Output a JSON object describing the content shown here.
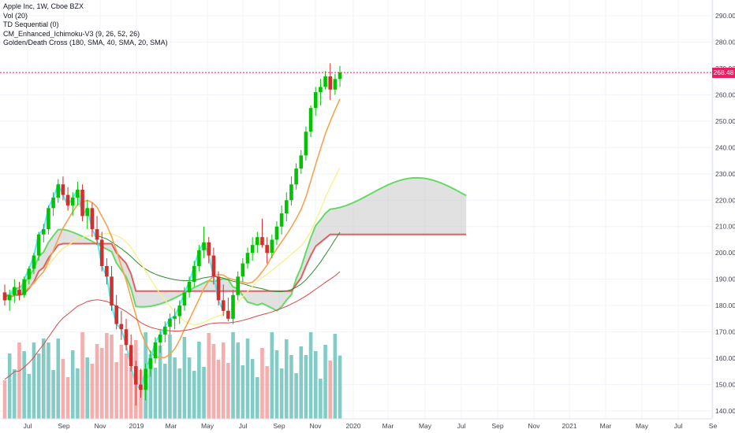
{
  "legend": {
    "title": "Apple Inc, 1W, Cboe BZX",
    "items": [
      "Vol (20)",
      "TD Sequential (0)",
      "CM_Enhanced_Ichimoku-V3 (9, 26, 52, 26)",
      "Golden/Death Cross (180, SMA, 40, SMA, 20, SMA)"
    ]
  },
  "price_label": "268.48",
  "colors": {
    "up": "#00c400",
    "down": "#d32f2f",
    "vol_up": "#76c7c0",
    "vol_down": "#f4a5a5",
    "cyan": "#4ff0f7",
    "orange": "#f7a24f",
    "yellow": "#f7f08a",
    "green_sma": "#2e8b2e",
    "red_sma": "#d84848",
    "cloud_edge_green": "#66d966",
    "cloud_edge_red": "#e06060",
    "cloud_fill": "#c8c8c8",
    "price_line": "#e91e63",
    "td_up": "#1b8a1b",
    "td_down": "#c62828"
  },
  "chart_data": {
    "type": "candlestick",
    "title": "Apple Inc, 1W, Cboe BZX",
    "y_axis_ticks": [
      "140.00",
      "150.00",
      "160.00",
      "170.00",
      "180.00",
      "190.00",
      "200.00",
      "210.00",
      "220.00",
      "230.00",
      "240.00",
      "250.00",
      "260.00",
      "270.00",
      "280.00",
      "290.00"
    ],
    "x_axis_ticks": [
      "Jul",
      "Sep",
      "Nov",
      "2019",
      "Mar",
      "May",
      "Jul",
      "Sep",
      "Nov",
      "2020",
      "Mar",
      "May",
      "Jul",
      "Sep",
      "Nov",
      "2021",
      "Mar",
      "May",
      "Jul",
      "Se"
    ],
    "ylim": [
      137,
      296
    ],
    "last_price": 268.48,
    "candles": [
      {
        "o": 185,
        "h": 188,
        "l": 180,
        "c": 182
      },
      {
        "o": 182,
        "h": 186,
        "l": 178,
        "c": 184
      },
      {
        "o": 184,
        "h": 190,
        "l": 181,
        "c": 187
      },
      {
        "o": 186,
        "h": 189,
        "l": 182,
        "c": 184
      },
      {
        "o": 184,
        "h": 191,
        "l": 183,
        "c": 190
      },
      {
        "o": 190,
        "h": 195,
        "l": 188,
        "c": 194
      },
      {
        "o": 194,
        "h": 200,
        "l": 192,
        "c": 199
      },
      {
        "o": 199,
        "h": 208,
        "l": 197,
        "c": 207
      },
      {
        "o": 207,
        "h": 211,
        "l": 204,
        "c": 209
      },
      {
        "o": 209,
        "h": 218,
        "l": 207,
        "c": 217
      },
      {
        "o": 217,
        "h": 223,
        "l": 214,
        "c": 221
      },
      {
        "o": 221,
        "h": 228,
        "l": 219,
        "c": 226
      },
      {
        "o": 226,
        "h": 229,
        "l": 220,
        "c": 222
      },
      {
        "o": 222,
        "h": 225,
        "l": 216,
        "c": 218
      },
      {
        "o": 218,
        "h": 223,
        "l": 214,
        "c": 221
      },
      {
        "o": 221,
        "h": 227,
        "l": 218,
        "c": 224
      },
      {
        "o": 224,
        "h": 226,
        "l": 212,
        "c": 214
      },
      {
        "o": 214,
        "h": 220,
        "l": 209,
        "c": 217
      },
      {
        "o": 217,
        "h": 219,
        "l": 206,
        "c": 209
      },
      {
        "o": 209,
        "h": 214,
        "l": 203,
        "c": 205
      },
      {
        "o": 205,
        "h": 208,
        "l": 193,
        "c": 195
      },
      {
        "o": 195,
        "h": 198,
        "l": 188,
        "c": 191
      },
      {
        "o": 191,
        "h": 195,
        "l": 178,
        "c": 180
      },
      {
        "o": 180,
        "h": 184,
        "l": 171,
        "c": 173
      },
      {
        "o": 173,
        "h": 178,
        "l": 167,
        "c": 171
      },
      {
        "o": 171,
        "h": 175,
        "l": 163,
        "c": 165
      },
      {
        "o": 165,
        "h": 169,
        "l": 155,
        "c": 157
      },
      {
        "o": 157,
        "h": 159,
        "l": 142,
        "c": 150
      },
      {
        "o": 150,
        "h": 156,
        "l": 145,
        "c": 148
      },
      {
        "o": 148,
        "h": 158,
        "l": 144,
        "c": 156
      },
      {
        "o": 156,
        "h": 163,
        "l": 153,
        "c": 160
      },
      {
        "o": 160,
        "h": 168,
        "l": 158,
        "c": 166
      },
      {
        "o": 166,
        "h": 171,
        "l": 162,
        "c": 169
      },
      {
        "o": 169,
        "h": 174,
        "l": 166,
        "c": 172
      },
      {
        "o": 172,
        "h": 177,
        "l": 169,
        "c": 175
      },
      {
        "o": 175,
        "h": 179,
        "l": 171,
        "c": 176
      },
      {
        "o": 176,
        "h": 182,
        "l": 173,
        "c": 180
      },
      {
        "o": 180,
        "h": 187,
        "l": 178,
        "c": 185
      },
      {
        "o": 185,
        "h": 191,
        "l": 183,
        "c": 189
      },
      {
        "o": 189,
        "h": 197,
        "l": 187,
        "c": 195
      },
      {
        "o": 195,
        "h": 203,
        "l": 193,
        "c": 201
      },
      {
        "o": 201,
        "h": 210,
        "l": 198,
        "c": 204
      },
      {
        "o": 204,
        "h": 206,
        "l": 196,
        "c": 199
      },
      {
        "o": 199,
        "h": 202,
        "l": 188,
        "c": 191
      },
      {
        "o": 191,
        "h": 193,
        "l": 180,
        "c": 182
      },
      {
        "o": 182,
        "h": 188,
        "l": 176,
        "c": 178
      },
      {
        "o": 178,
        "h": 183,
        "l": 174,
        "c": 175
      },
      {
        "o": 175,
        "h": 186,
        "l": 173,
        "c": 184
      },
      {
        "o": 184,
        "h": 193,
        "l": 182,
        "c": 191
      },
      {
        "o": 191,
        "h": 198,
        "l": 189,
        "c": 196
      },
      {
        "o": 196,
        "h": 202,
        "l": 194,
        "c": 200
      },
      {
        "o": 200,
        "h": 206,
        "l": 197,
        "c": 203
      },
      {
        "o": 203,
        "h": 208,
        "l": 200,
        "c": 206
      },
      {
        "o": 206,
        "h": 213,
        "l": 202,
        "c": 203
      },
      {
        "o": 203,
        "h": 206,
        "l": 196,
        "c": 200
      },
      {
        "o": 200,
        "h": 207,
        "l": 198,
        "c": 205
      },
      {
        "o": 205,
        "h": 212,
        "l": 203,
        "c": 210
      },
      {
        "o": 210,
        "h": 218,
        "l": 207,
        "c": 215
      },
      {
        "o": 215,
        "h": 223,
        "l": 212,
        "c": 220
      },
      {
        "o": 220,
        "h": 229,
        "l": 218,
        "c": 226
      },
      {
        "o": 226,
        "h": 234,
        "l": 224,
        "c": 232
      },
      {
        "o": 232,
        "h": 239,
        "l": 230,
        "c": 237
      },
      {
        "o": 237,
        "h": 248,
        "l": 235,
        "c": 246
      },
      {
        "o": 246,
        "h": 256,
        "l": 244,
        "c": 255
      },
      {
        "o": 255,
        "h": 263,
        "l": 252,
        "c": 261
      },
      {
        "o": 261,
        "h": 266,
        "l": 256,
        "c": 263
      },
      {
        "o": 263,
        "h": 269,
        "l": 262,
        "c": 267
      },
      {
        "o": 267,
        "h": 272,
        "l": 258,
        "c": 262
      },
      {
        "o": 262,
        "h": 268,
        "l": 260,
        "c": 266
      },
      {
        "o": 266,
        "h": 271,
        "l": 263,
        "c": 268.48
      }
    ]
  }
}
